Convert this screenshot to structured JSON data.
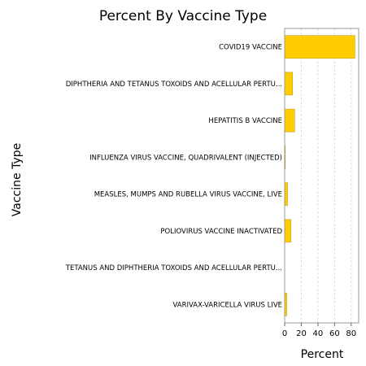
{
  "chart_data": {
    "type": "bar",
    "orientation": "horizontal",
    "title": "Percent By Vaccine Type",
    "xlabel": "Percent",
    "ylabel": "Vaccine Type",
    "categories": [
      "COVID19 VACCINE",
      "DIPHTHERIA AND TETANUS TOXOIDS AND ACELLULAR PERTU...",
      "HEPATITIS B VACCINE",
      "INFLUENZA VIRUS VACCINE, QUADRIVALENT (INJECTED)",
      "MEASLES, MUMPS AND RUBELLA VIRUS VACCINE, LIVE",
      "POLIOVIRUS VACCINE INACTIVATED",
      "TETANUS AND DIPHTHERIA TOXOIDS AND ACELLULAR PERTU...",
      "VARIVAX-VARICELLA VIRUS LIVE"
    ],
    "values": [
      84.5,
      9.5,
      12.0,
      0.8,
      3.5,
      7.5,
      0.0,
      2.5
    ],
    "xlim": [
      0,
      89
    ],
    "xticks": [
      0,
      20,
      40,
      60,
      80
    ],
    "grid": true,
    "colors": {
      "bar": "#FFCC00",
      "bar_edge": "#B8960A",
      "grid": "#DDDDDD",
      "frame": "#999999"
    }
  }
}
